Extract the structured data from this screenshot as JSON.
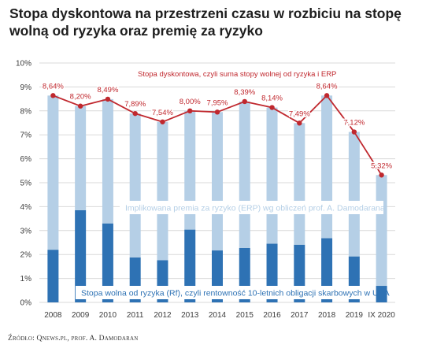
{
  "title": "Stopa dyskontowa na przestrzeni czasu w rozbiciu na stopę wolną od ryzyka oraz premię za ryzyko",
  "source": "Źródło: Qnews.pl, prof. A. Damodaran",
  "colors": {
    "rf_bar": "#2e72b4",
    "erp_bar": "#b5cfe6",
    "line": "#c0282e",
    "gridline": "#d9d9d9",
    "axis_text": "#3c3c3c"
  },
  "chart_data": {
    "type": "bar",
    "stacked": true,
    "categories": [
      "2008",
      "2009",
      "2010",
      "2011",
      "2012",
      "2013",
      "2014",
      "2015",
      "2016",
      "2017",
      "2018",
      "2019",
      "IX 2020"
    ],
    "ylim": [
      0,
      10
    ],
    "y_ticks": [
      "0%",
      "1%",
      "2%",
      "3%",
      "4%",
      "5%",
      "6%",
      "7%",
      "8%",
      "9%",
      "10%"
    ],
    "grid": true,
    "series": [
      {
        "name": "Stopa wolna od ryzyka (Rf), czyli rentowność 10-letnich obligacji skarbowych w USA",
        "kind": "bar",
        "values": [
          2.2,
          3.85,
          3.3,
          1.88,
          1.76,
          3.04,
          2.17,
          2.27,
          2.45,
          2.41,
          2.68,
          1.92,
          0.69
        ]
      },
      {
        "name": "Implikowana premia za ryzyko (ERP) wg obliczeń prof. A. Damodarana",
        "kind": "bar",
        "values": [
          6.44,
          4.35,
          5.19,
          6.01,
          5.78,
          4.96,
          5.78,
          6.12,
          5.69,
          5.08,
          5.96,
          5.2,
          4.63
        ]
      },
      {
        "name": "Stopa dyskontowa, czyli suma stopy wolnej od ryzyka i ERP",
        "kind": "line",
        "values": [
          8.64,
          8.2,
          8.49,
          7.89,
          7.54,
          8.0,
          7.95,
          8.39,
          8.14,
          7.49,
          8.64,
          7.12,
          5.32
        ],
        "data_labels": [
          "8,64%",
          "8,20%",
          "8,49%",
          "7,89%",
          "7,54%",
          "8,00%",
          "7,95%",
          "8,39%",
          "8,14%",
          "7,49%",
          "8,64%",
          "7,12%",
          "5,32%"
        ]
      }
    ]
  }
}
